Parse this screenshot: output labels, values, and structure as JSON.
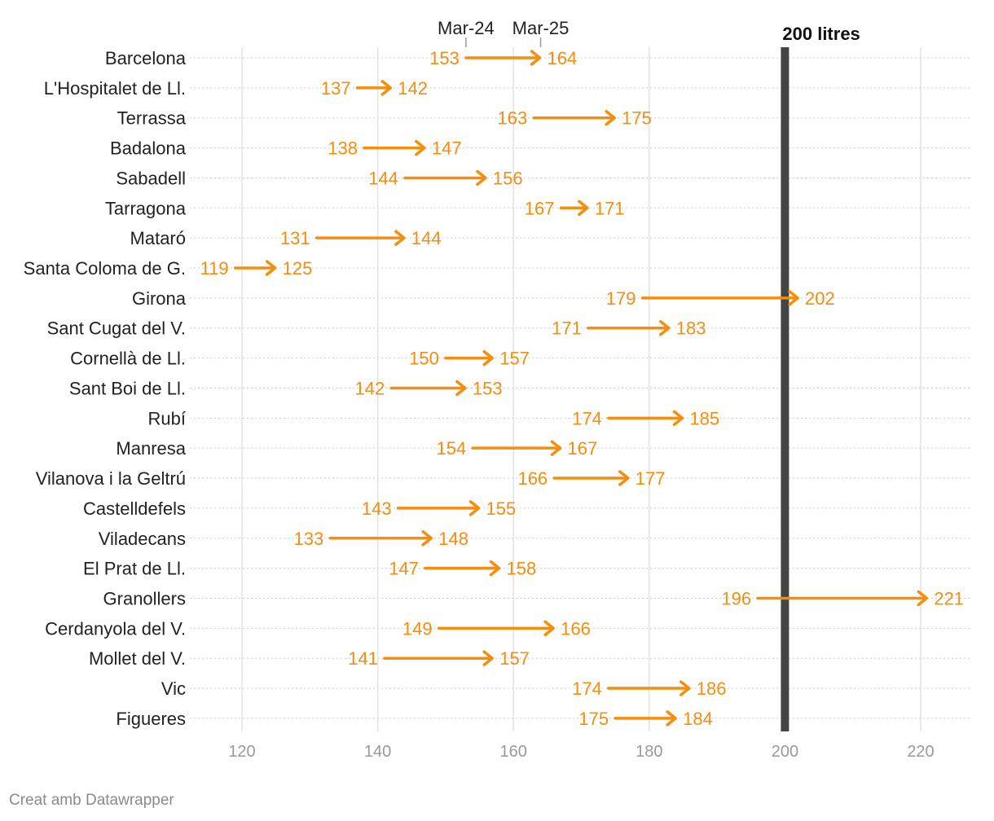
{
  "chart_data": {
    "type": "arrow",
    "title": "",
    "xlabel": "",
    "ylabel": "",
    "xlim": [
      113,
      227
    ],
    "xticks": [
      120,
      140,
      160,
      180,
      200,
      220
    ],
    "xtick_labels": [
      "120",
      "140",
      "160",
      "180",
      "200",
      "220"
    ],
    "legend": {
      "start_label": "Mar-24",
      "end_label": "Mar-25",
      "example_row": "Barcelona"
    },
    "reference_line": {
      "value": 200,
      "label": "200 litres",
      "color": "#444444"
    },
    "series": [
      {
        "name": "Mar-24",
        "role": "start"
      },
      {
        "name": "Mar-25",
        "role": "end"
      }
    ],
    "color": "#f58d0e",
    "rows": [
      {
        "label": "Barcelona",
        "start": 153,
        "end": 164
      },
      {
        "label": "L'Hospitalet de Ll.",
        "start": 137,
        "end": 142
      },
      {
        "label": "Terrassa",
        "start": 163,
        "end": 175
      },
      {
        "label": "Badalona",
        "start": 138,
        "end": 147
      },
      {
        "label": "Sabadell",
        "start": 144,
        "end": 156
      },
      {
        "label": "Tarragona",
        "start": 167,
        "end": 171
      },
      {
        "label": "Mataró",
        "start": 131,
        "end": 144
      },
      {
        "label": "Santa Coloma de G.",
        "start": 119,
        "end": 125
      },
      {
        "label": "Girona",
        "start": 179,
        "end": 202
      },
      {
        "label": "Sant Cugat del V.",
        "start": 171,
        "end": 183
      },
      {
        "label": "Cornellà de Ll.",
        "start": 150,
        "end": 157
      },
      {
        "label": "Sant Boi de Ll.",
        "start": 142,
        "end": 153
      },
      {
        "label": "Rubí",
        "start": 174,
        "end": 185
      },
      {
        "label": "Manresa",
        "start": 154,
        "end": 167
      },
      {
        "label": "Vilanova i la Geltrú",
        "start": 166,
        "end": 177
      },
      {
        "label": "Castelldefels",
        "start": 143,
        "end": 155
      },
      {
        "label": "Viladecans",
        "start": 133,
        "end": 148
      },
      {
        "label": "El Prat de Ll.",
        "start": 147,
        "end": 158
      },
      {
        "label": "Granollers",
        "start": 196,
        "end": 221
      },
      {
        "label": "Cerdanyola del V.",
        "start": 149,
        "end": 166
      },
      {
        "label": "Mollet del V.",
        "start": 141,
        "end": 157
      },
      {
        "label": "Vic",
        "start": 174,
        "end": 186
      },
      {
        "label": "Figueres",
        "start": 175,
        "end": 184
      }
    ]
  },
  "footer": {
    "credit": "Creat amb Datawrapper"
  }
}
